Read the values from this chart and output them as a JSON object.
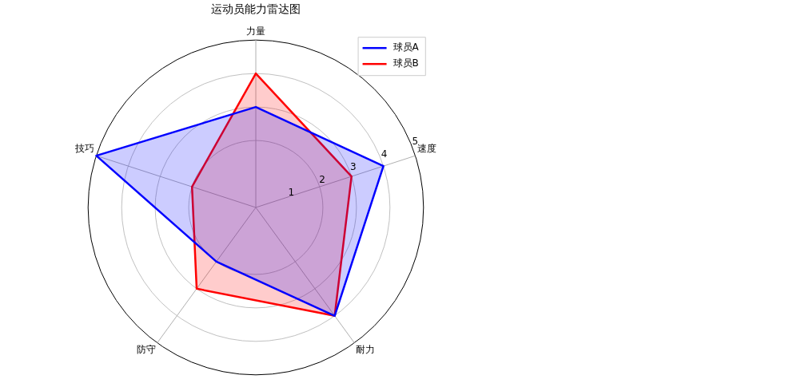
{
  "chart_data": {
    "type": "radar",
    "title": "运动员能力雷达图",
    "categories": [
      "力量",
      "速度",
      "耐力",
      "防守",
      "技巧"
    ],
    "series": [
      {
        "name": "球员A",
        "color": "#0000ff",
        "values": [
          3,
          4,
          4,
          2,
          5
        ]
      },
      {
        "name": "球员B",
        "color": "#ff0000",
        "values": [
          4,
          3,
          4,
          3,
          2
        ]
      }
    ],
    "ylim": [
      0,
      5
    ],
    "yticks": [
      1,
      2,
      3,
      4,
      5
    ],
    "grid": true,
    "legend": "top right",
    "marker": "none"
  }
}
